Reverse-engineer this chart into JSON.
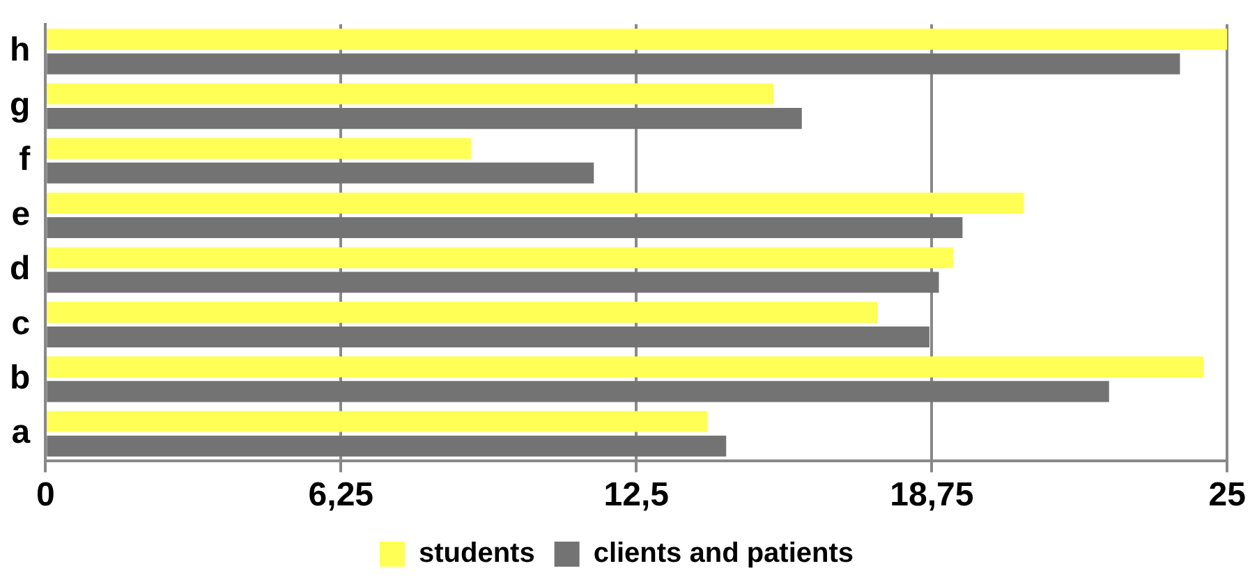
{
  "chart_data": {
    "type": "bar",
    "orientation": "horizontal",
    "categories": [
      "h",
      "g",
      "f",
      "e",
      "d",
      "c",
      "b",
      "a"
    ],
    "series": [
      {
        "name": "students",
        "color": "#ffff55",
        "values": [
          25.0,
          15.4,
          9.0,
          20.7,
          19.2,
          17.6,
          24.5,
          14.0
        ]
      },
      {
        "name": "clients and patients",
        "color": "#737373",
        "values": [
          24.0,
          16.0,
          11.6,
          19.4,
          18.9,
          18.7,
          22.5,
          14.4
        ]
      }
    ],
    "xlim": [
      0,
      25
    ],
    "xticks": [
      0,
      {
        "value": 6.25,
        "label": "6,25"
      },
      {
        "value": 12.5,
        "label": "12,5"
      },
      {
        "value": 18.75,
        "label": "18,75"
      },
      25
    ],
    "grid": "x",
    "legend": "bottom"
  }
}
